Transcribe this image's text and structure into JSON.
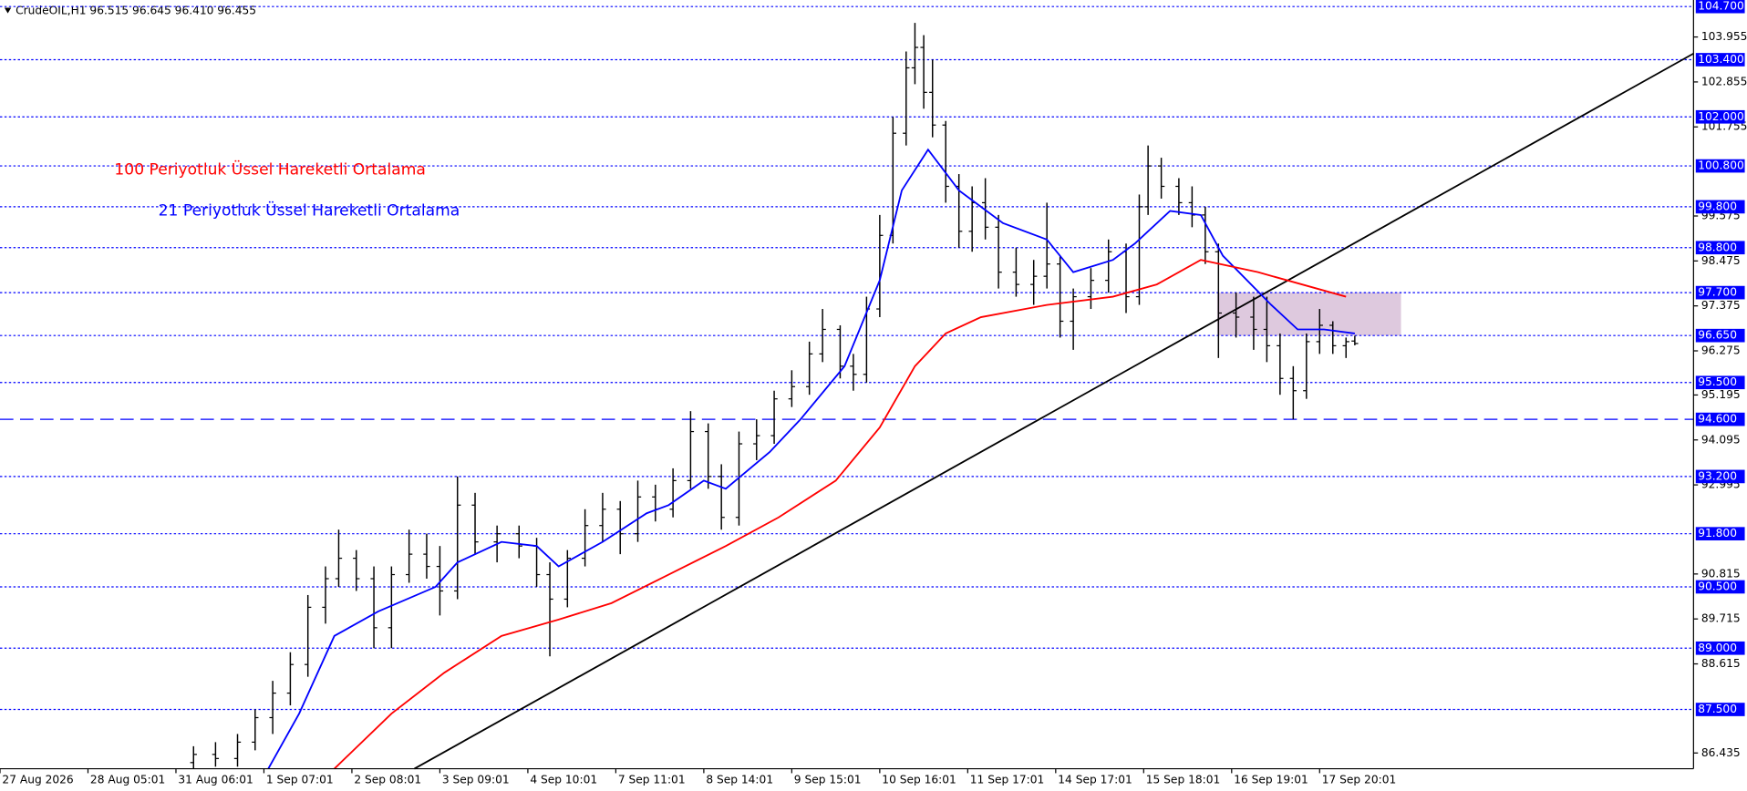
{
  "chart_data": {
    "type": "ohlc",
    "title": "CrudeOIL,H1  96.515 96.645 96.410 96.455",
    "xlim": [
      0,
      385
    ],
    "ylim": [
      86.05,
      104.86
    ],
    "xticks": [
      {
        "value": 0,
        "label": "27 Aug 2026"
      },
      {
        "value": 20,
        "label": "28 Aug 05:01"
      },
      {
        "value": 40,
        "label": "31 Aug 06:01"
      },
      {
        "value": 60,
        "label": "1 Sep 07:01"
      },
      {
        "value": 80,
        "label": "2 Sep 08:01"
      },
      {
        "value": 100,
        "label": "3 Sep 09:01"
      },
      {
        "value": 120,
        "label": "4 Sep 10:01"
      },
      {
        "value": 140,
        "label": "7 Sep 11:01"
      },
      {
        "value": 160,
        "label": "8 Sep 14:01"
      },
      {
        "value": 180,
        "label": "9 Sep 15:01"
      },
      {
        "value": 200,
        "label": "10 Sep 16:01"
      },
      {
        "value": 220,
        "label": "11 Sep 17:01"
      },
      {
        "value": 240,
        "label": "14 Sep 17:01"
      },
      {
        "value": 260,
        "label": "15 Sep 18:01"
      },
      {
        "value": 280,
        "label": "16 Sep 19:01"
      },
      {
        "value": 300,
        "label": "17 Sep 20:01"
      }
    ],
    "yticks": [
      103.955,
      102.855,
      101.755,
      99.575,
      98.475,
      97.375,
      96.275,
      95.195,
      94.095,
      92.995,
      90.815,
      89.715,
      88.615,
      86.435
    ],
    "levels": [
      {
        "value": 104.7,
        "label": "104.700"
      },
      {
        "value": 103.4,
        "label": "103.400"
      },
      {
        "value": 102,
        "label": "102.000"
      },
      {
        "value": 100.8,
        "label": "100.800"
      },
      {
        "value": 99.8,
        "label": "99.800"
      },
      {
        "value": 98.8,
        "label": "98.800"
      },
      {
        "value": 97.7,
        "label": "97.700"
      },
      {
        "value": 96.65,
        "label": "96.650"
      },
      {
        "value": 95.5,
        "label": "95.500"
      },
      {
        "value": 93.2,
        "label": "93.200"
      },
      {
        "value": 91.8,
        "label": "91.800"
      },
      {
        "value": 90.5,
        "label": "90.500"
      },
      {
        "value": 89,
        "label": "89.000"
      },
      {
        "value": 87.5,
        "label": "87.500"
      }
    ],
    "support": {
      "value": 94.6,
      "label": "94.600"
    },
    "bar_color": "#000000",
    "level_color": "#0000ff",
    "bars": {
      "x": [
        44,
        49,
        54,
        58,
        62,
        66,
        70,
        74,
        77,
        81,
        85,
        89,
        93,
        97,
        100,
        104,
        108,
        113,
        118,
        122,
        125,
        129,
        133,
        137,
        141,
        145,
        149,
        153,
        157,
        161,
        164,
        168,
        172,
        176,
        180,
        184,
        187,
        191,
        194,
        197,
        200,
        203,
        206,
        208,
        210,
        212,
        215,
        218,
        221,
        224,
        227,
        231,
        235,
        238,
        241,
        244,
        248,
        252,
        256,
        259,
        261,
        264,
        268,
        271,
        274,
        277,
        281,
        285,
        288,
        291,
        294,
        297,
        300,
        303,
        306,
        308
      ],
      "open": [
        86.2,
        86.4,
        86.3,
        86.7,
        87.3,
        87.9,
        88.6,
        90.0,
        90.7,
        91.2,
        90.7,
        89.5,
        90.8,
        91.3,
        91.0,
        90.4,
        92.5,
        91.6,
        91.8,
        91.5,
        90.8,
        90.2,
        91.2,
        92.0,
        92.4,
        91.8,
        92.7,
        92.4,
        93.1,
        94.3,
        93.2,
        92.2,
        94.0,
        94.2,
        95.1,
        95.4,
        96.2,
        96.8,
        95.9,
        95.7,
        97.3,
        99.1,
        101.6,
        103.2,
        103.7,
        102.6,
        101.8,
        100.3,
        99.2,
        99.9,
        99.3,
        98.2,
        97.9,
        98.1,
        98.4,
        97.0,
        97.6,
        98.0,
        98.7,
        97.6,
        99.8,
        100.8,
        100.3,
        99.9,
        99.6,
        98.7,
        97.2,
        97.1,
        96.8,
        96.4,
        95.6,
        95.3,
        96.5,
        96.9,
        96.4,
        96.515
      ],
      "high": [
        86.6,
        86.7,
        86.9,
        87.5,
        88.2,
        88.9,
        90.3,
        91.0,
        91.9,
        91.4,
        91.0,
        91.0,
        91.9,
        91.8,
        91.5,
        93.2,
        92.8,
        92.0,
        92.0,
        91.7,
        91.1,
        91.4,
        92.4,
        92.8,
        92.6,
        93.1,
        93.0,
        93.4,
        94.8,
        94.5,
        93.5,
        94.3,
        94.6,
        95.3,
        95.8,
        96.5,
        97.3,
        96.9,
        96.2,
        97.6,
        99.6,
        102.0,
        103.6,
        104.3,
        104.0,
        103.4,
        101.9,
        100.6,
        100.3,
        100.5,
        99.6,
        98.8,
        98.5,
        99.9,
        98.6,
        97.8,
        98.3,
        99.0,
        98.9,
        100.1,
        101.3,
        101.0,
        100.5,
        100.3,
        99.8,
        98.9,
        97.7,
        97.6,
        97.6,
        96.7,
        95.9,
        96.7,
        97.3,
        97.0,
        96.6,
        96.645
      ],
      "low": [
        86.05,
        86.1,
        86.1,
        86.5,
        86.9,
        87.6,
        88.3,
        89.6,
        90.5,
        90.4,
        89.0,
        89.0,
        90.6,
        90.7,
        89.8,
        90.2,
        91.3,
        91.1,
        91.2,
        90.5,
        88.8,
        90.0,
        91.0,
        91.6,
        91.3,
        91.6,
        92.1,
        92.2,
        92.9,
        92.9,
        91.9,
        92.0,
        93.6,
        94.0,
        94.9,
        95.2,
        96.0,
        95.6,
        95.3,
        95.5,
        97.1,
        98.9,
        101.3,
        102.8,
        102.2,
        101.5,
        99.9,
        98.8,
        98.7,
        99.0,
        97.8,
        97.6,
        97.4,
        97.8,
        96.6,
        96.3,
        97.3,
        97.7,
        97.2,
        97.4,
        99.6,
        100.0,
        99.6,
        99.3,
        98.4,
        96.1,
        96.6,
        96.3,
        96.0,
        95.2,
        94.6,
        95.1,
        96.2,
        96.2,
        96.1,
        96.41
      ],
      "close": [
        86.4,
        86.3,
        86.7,
        87.3,
        87.9,
        88.6,
        90.0,
        90.7,
        91.2,
        90.7,
        89.5,
        90.8,
        91.3,
        91.0,
        90.4,
        92.5,
        91.6,
        91.8,
        91.5,
        90.8,
        90.2,
        91.2,
        92.0,
        92.4,
        91.8,
        92.7,
        92.4,
        93.1,
        94.3,
        93.2,
        92.2,
        94.0,
        94.2,
        95.1,
        95.4,
        96.2,
        96.8,
        95.9,
        95.7,
        97.3,
        99.1,
        101.6,
        103.2,
        103.7,
        102.6,
        101.8,
        100.3,
        99.2,
        99.9,
        99.3,
        98.2,
        97.9,
        98.1,
        98.4,
        97.0,
        97.6,
        98.0,
        98.7,
        97.6,
        99.8,
        100.8,
        100.3,
        99.9,
        99.6,
        98.7,
        97.2,
        97.1,
        96.8,
        96.4,
        95.6,
        95.3,
        96.5,
        96.9,
        96.4,
        96.5,
        96.455
      ]
    },
    "series": [
      {
        "color": "#0000ff",
        "x": [
          61,
          68,
          76,
          86,
          99,
          104,
          114,
          122,
          127,
          137,
          147,
          152,
          160,
          165,
          175,
          182,
          192,
          200,
          205,
          211,
          218,
          223,
          228,
          238,
          244,
          253,
          258,
          266,
          273,
          278,
          289,
          295,
          301,
          308
        ],
        "values": [
          86.05,
          87.4,
          89.3,
          89.9,
          90.5,
          91.1,
          91.6,
          91.5,
          91.0,
          91.6,
          92.3,
          92.5,
          93.1,
          92.9,
          93.8,
          94.6,
          95.9,
          98.0,
          100.2,
          101.2,
          100.2,
          99.8,
          99.4,
          99.0,
          98.2,
          98.5,
          98.9,
          99.7,
          99.6,
          98.6,
          97.4,
          96.8,
          96.8,
          96.7
        ]
      },
      {
        "color": "#ff0000",
        "x": [
          76,
          89,
          101,
          114,
          127,
          139,
          152,
          165,
          177,
          190,
          200,
          208,
          215,
          223,
          238,
          253,
          263,
          273,
          286,
          306
        ],
        "values": [
          86.05,
          87.4,
          88.4,
          89.3,
          89.7,
          90.1,
          90.8,
          91.5,
          92.2,
          93.1,
          94.4,
          95.9,
          96.7,
          97.1,
          97.4,
          97.6,
          97.9,
          98.5,
          98.2,
          97.6
        ]
      }
    ],
    "trendline": {
      "x": [
        94.2,
        385
      ],
      "y": [
        86.05,
        103.55
      ],
      "color": "#000000"
    },
    "zone": {
      "x": [
        276.7,
        318.5
      ],
      "y": [
        96.65,
        97.7
      ],
      "color": "#d8bfd8"
    },
    "annotations": [
      {
        "text": "100 Periyotluk Üssel Hareketli Ortalama",
        "color": "#ff0000",
        "x": 26,
        "y": 100.7
      },
      {
        "text": "21 Periyotluk Üssel Hareketli Ortalama",
        "color": "#0000ff",
        "x": 36,
        "y": 99.7
      }
    ]
  }
}
